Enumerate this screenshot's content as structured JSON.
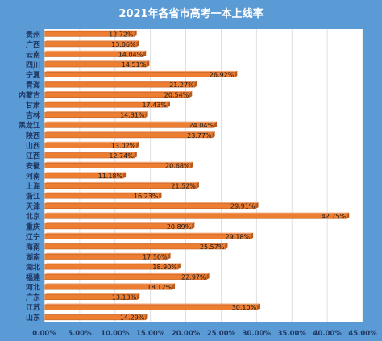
{
  "chart_data": {
    "type": "bar",
    "orientation": "horizontal",
    "title": "2021年各省市高考一本上线率",
    "xlabel": "",
    "ylabel": "",
    "xlim": [
      0,
      45
    ],
    "x_ticks": [
      "0.00%",
      "5.00%",
      "10.00%",
      "15.00%",
      "20.00%",
      "25.00%",
      "30.00%",
      "35.00%",
      "40.00%",
      "45.00%"
    ],
    "grid": true,
    "categories": [
      "贵州",
      "广西",
      "云南",
      "四川",
      "宁夏",
      "青海",
      "内蒙古",
      "甘肃",
      "吉林",
      "黑龙江",
      "陕西",
      "山西",
      "江西",
      "安徽",
      "河南",
      "上海",
      "浙江",
      "天津",
      "北京",
      "重庆",
      "辽宁",
      "海南",
      "湖南",
      "湖北",
      "福建",
      "河北",
      "广东",
      "江苏",
      "山东"
    ],
    "values": [
      12.72,
      13.06,
      14.04,
      14.51,
      26.92,
      21.27,
      20.54,
      17.43,
      14.31,
      24.04,
      23.77,
      13.02,
      12.74,
      20.68,
      11.18,
      21.52,
      16.23,
      29.91,
      42.75,
      20.89,
      29.18,
      25.57,
      17.5,
      18.9,
      22.97,
      18.12,
      13.13,
      30.1,
      14.29
    ],
    "data_labels": [
      "12.72%",
      "13.06%",
      "14.04%",
      "14.51%",
      "26.92%",
      "21.27%",
      "20.54%",
      "17.43%",
      "14.31%",
      "24.04%",
      "23.77%",
      "13.02%",
      "12.74%",
      "20.68%",
      "11.18%",
      "21.52%",
      "16.23%",
      "29.91%",
      "42.75%",
      "20.89%",
      "29.18%",
      "25.57%",
      "17.50%",
      "18.90%",
      "22.97%",
      "18.12%",
      "13.13%",
      "30.10%",
      "14.29%"
    ],
    "colors": {
      "background": "#5b9bd5",
      "plot_background": "#ffffff",
      "bar": "#ed7d31",
      "bar_dark": "#b85a1c",
      "gridline": "#d9d9d9",
      "text": "#1f3864",
      "title": "#ffffff"
    }
  }
}
